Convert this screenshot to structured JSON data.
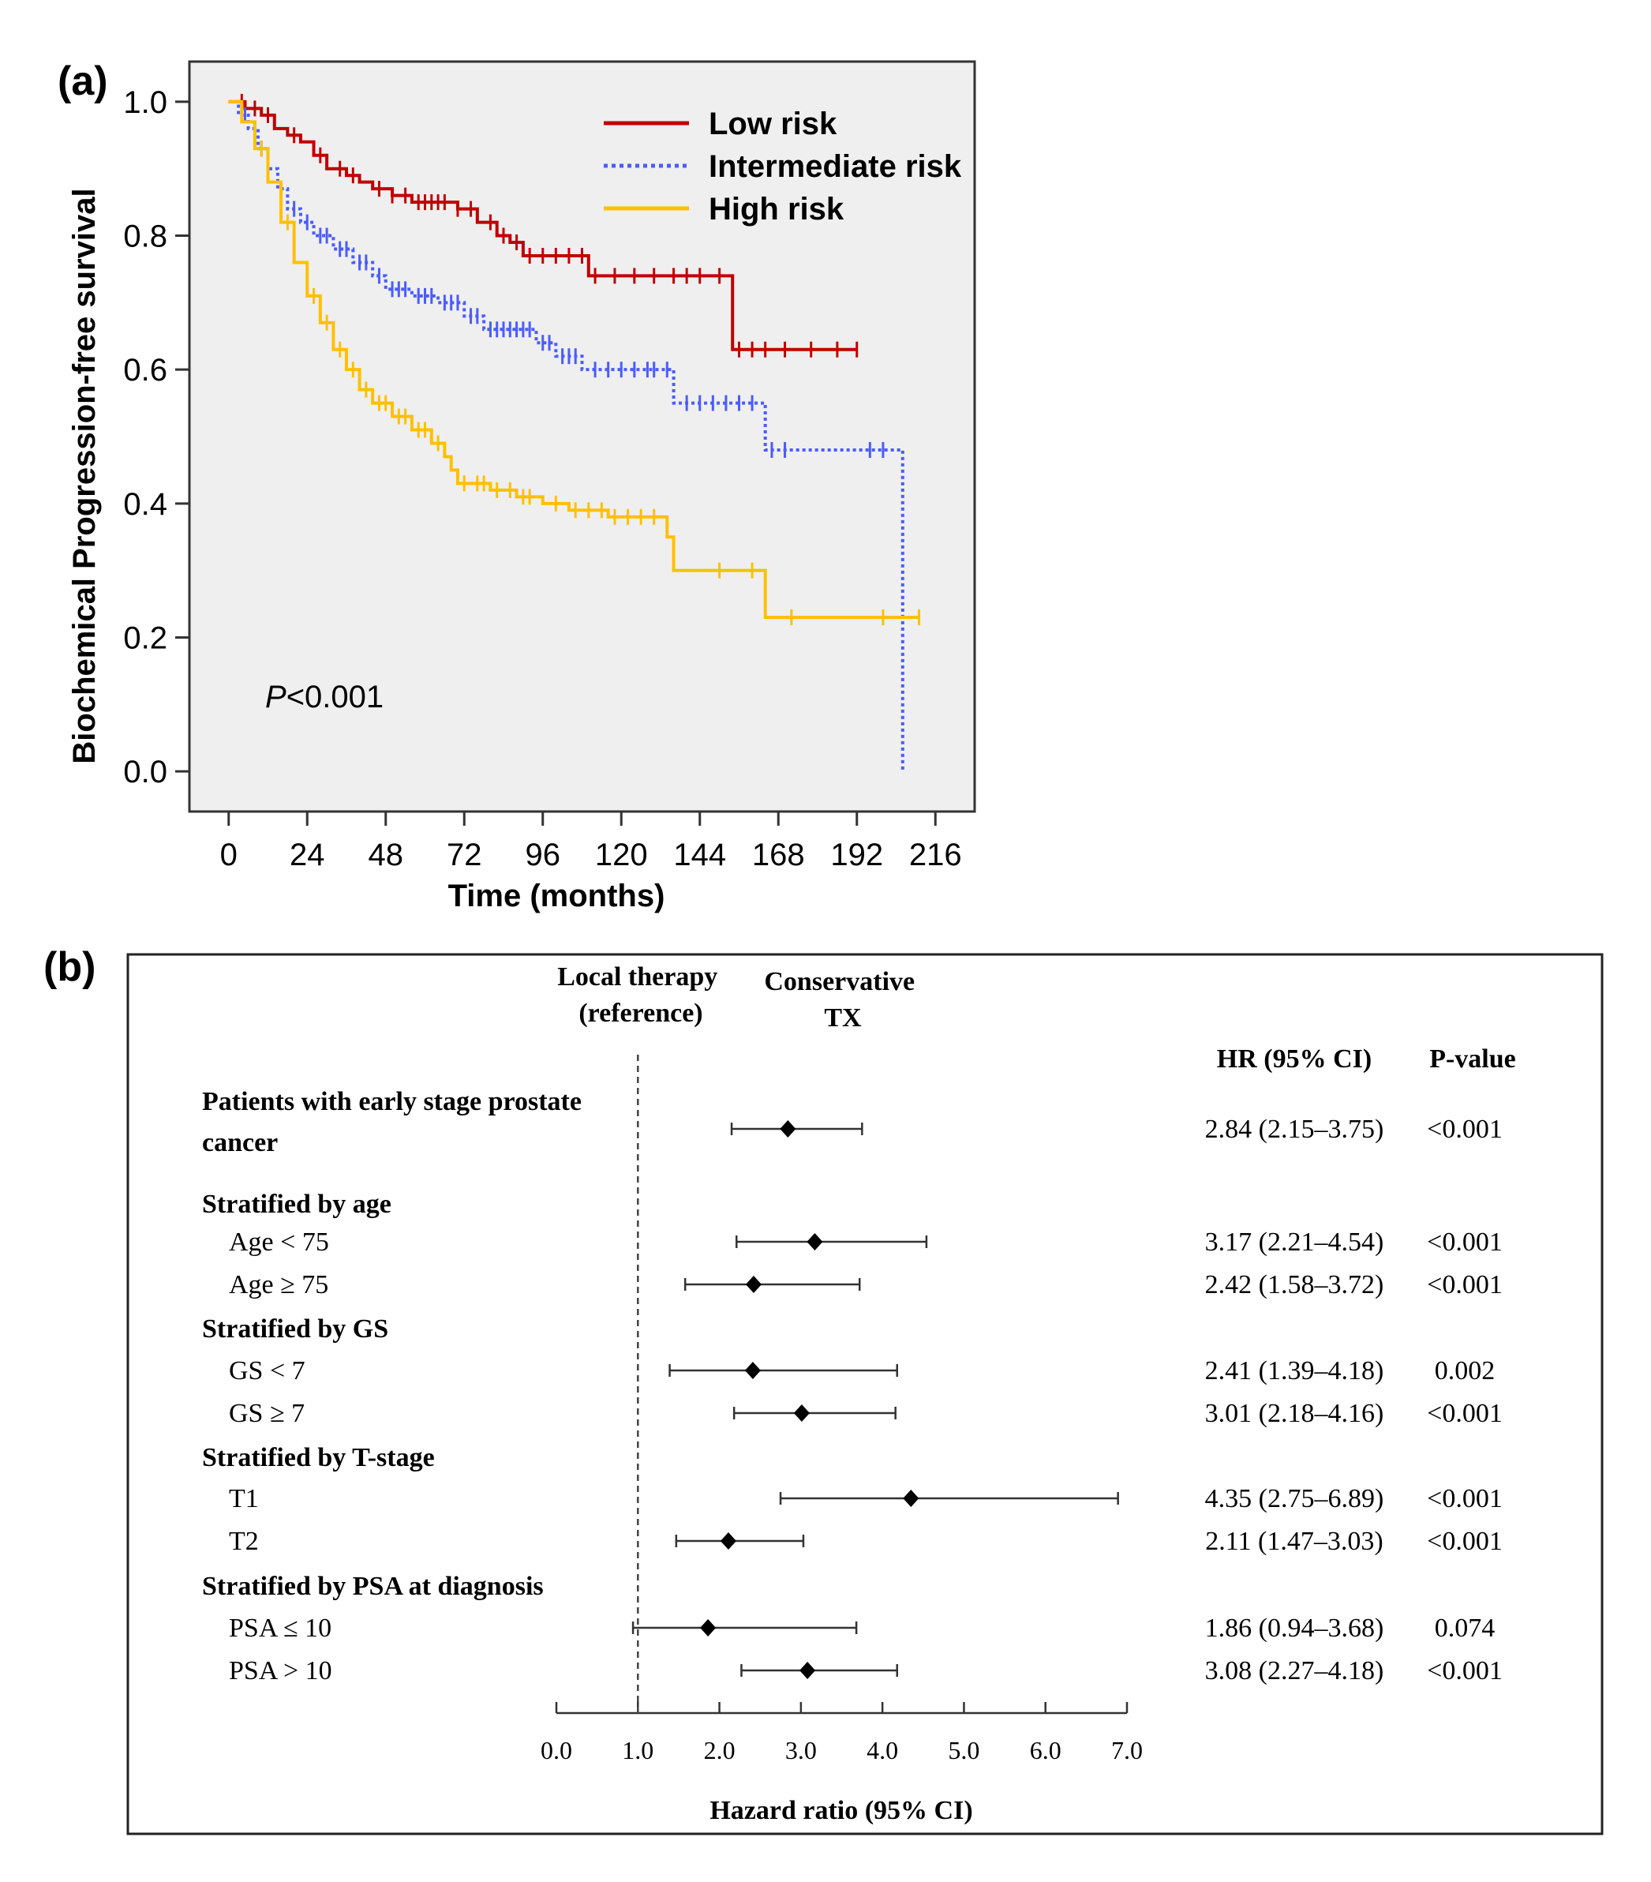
{
  "chart_data": [
    {
      "panel_label": "(a)",
      "type": "line",
      "subtype": "kaplan-meier",
      "xlabel": "Time (months)",
      "ylabel": "Biochemical Progression-free survival",
      "xlim": [
        -12,
        228
      ],
      "ylim": [
        -0.06,
        1.06
      ],
      "x_ticks": [
        0,
        24,
        48,
        72,
        96,
        120,
        144,
        168,
        192,
        216
      ],
      "y_ticks": [
        0.0,
        0.2,
        0.4,
        0.6,
        0.8,
        1.0
      ],
      "x_tick_labels": [
        "0",
        "24",
        "48",
        "72",
        "96",
        "120",
        "144",
        "168",
        "192",
        "216"
      ],
      "y_tick_labels": [
        "0.0",
        "0.2",
        "0.4",
        "0.6",
        "0.8",
        "1.0"
      ],
      "annotation": {
        "prefix": "P",
        "text": "<0.001"
      },
      "legend_position": "top-right",
      "grid": false,
      "background": "#efefef",
      "series": [
        {
          "name": "Low risk",
          "color": "#c00000",
          "dash": "solid",
          "steps": [
            [
              0,
              1.0
            ],
            [
              5,
              0.99
            ],
            [
              10,
              0.98
            ],
            [
              14,
              0.96
            ],
            [
              18,
              0.95
            ],
            [
              22,
              0.94
            ],
            [
              26,
              0.92
            ],
            [
              30,
              0.9
            ],
            [
              36,
              0.89
            ],
            [
              40,
              0.88
            ],
            [
              44,
              0.87
            ],
            [
              50,
              0.86
            ],
            [
              56,
              0.85
            ],
            [
              70,
              0.84
            ],
            [
              76,
              0.82
            ],
            [
              82,
              0.8
            ],
            [
              86,
              0.79
            ],
            [
              90,
              0.77
            ],
            [
              110,
              0.74
            ],
            [
              154,
              0.63
            ],
            [
              192,
              0.63
            ]
          ],
          "censors": [
            4,
            8,
            12,
            20,
            28,
            34,
            38,
            46,
            50,
            54,
            58,
            60,
            62,
            64,
            66,
            70,
            74,
            80,
            84,
            88,
            92,
            96,
            100,
            104,
            108,
            112,
            118,
            124,
            130,
            136,
            140,
            144,
            150,
            156,
            160,
            164,
            170,
            178,
            186,
            192
          ]
        },
        {
          "name": "Intermediate risk",
          "color": "#4a5cff",
          "dash": "dotted",
          "steps": [
            [
              0,
              1.0
            ],
            [
              3,
              0.98
            ],
            [
              6,
              0.96
            ],
            [
              9,
              0.93
            ],
            [
              12,
              0.9
            ],
            [
              15,
              0.87
            ],
            [
              18,
              0.84
            ],
            [
              22,
              0.82
            ],
            [
              26,
              0.8
            ],
            [
              32,
              0.78
            ],
            [
              38,
              0.76
            ],
            [
              44,
              0.74
            ],
            [
              48,
              0.72
            ],
            [
              56,
              0.71
            ],
            [
              64,
              0.7
            ],
            [
              72,
              0.68
            ],
            [
              78,
              0.66
            ],
            [
              94,
              0.64
            ],
            [
              100,
              0.62
            ],
            [
              108,
              0.6
            ],
            [
              136,
              0.55
            ],
            [
              164,
              0.48
            ],
            [
              206,
              0.0
            ]
          ],
          "censors": [
            5,
            10,
            16,
            20,
            24,
            28,
            30,
            34,
            36,
            40,
            42,
            46,
            50,
            52,
            54,
            58,
            60,
            62,
            66,
            68,
            70,
            74,
            76,
            80,
            82,
            84,
            86,
            88,
            90,
            92,
            96,
            98,
            102,
            104,
            106,
            112,
            116,
            120,
            124,
            128,
            130,
            134,
            140,
            144,
            148,
            152,
            156,
            160,
            166,
            170,
            196,
            200
          ]
        },
        {
          "name": "High risk",
          "color": "#ffc000",
          "dash": "solid",
          "steps": [
            [
              0,
              1.0
            ],
            [
              4,
              0.97
            ],
            [
              8,
              0.93
            ],
            [
              12,
              0.88
            ],
            [
              16,
              0.82
            ],
            [
              20,
              0.76
            ],
            [
              24,
              0.71
            ],
            [
              28,
              0.67
            ],
            [
              32,
              0.63
            ],
            [
              36,
              0.6
            ],
            [
              40,
              0.57
            ],
            [
              44,
              0.55
            ],
            [
              50,
              0.53
            ],
            [
              56,
              0.51
            ],
            [
              62,
              0.49
            ],
            [
              66,
              0.47
            ],
            [
              68,
              0.45
            ],
            [
              70,
              0.43
            ],
            [
              80,
              0.42
            ],
            [
              88,
              0.41
            ],
            [
              96,
              0.4
            ],
            [
              104,
              0.39
            ],
            [
              116,
              0.38
            ],
            [
              134,
              0.35
            ],
            [
              136,
              0.3
            ],
            [
              164,
              0.23
            ],
            [
              211,
              0.23
            ]
          ],
          "censors": [
            10,
            18,
            26,
            30,
            34,
            38,
            42,
            46,
            48,
            52,
            54,
            58,
            60,
            64,
            72,
            76,
            78,
            82,
            86,
            90,
            92,
            100,
            106,
            110,
            114,
            118,
            122,
            126,
            130,
            150,
            160,
            172,
            200,
            211
          ]
        }
      ]
    },
    {
      "panel_label": "(b)",
      "type": "forest",
      "xlabel": "Hazard ratio (95% CI)",
      "xlim": [
        0,
        7
      ],
      "x_ticks": [
        0,
        1,
        2,
        3,
        4,
        5,
        6,
        7
      ],
      "x_tick_labels": [
        "0.0",
        "1.0",
        "2.0",
        "3.0",
        "4.0",
        "5.0",
        "6.0",
        "7.0"
      ],
      "reference_line": 1.0,
      "header_left": [
        "Local therapy",
        "(reference)"
      ],
      "header_right": [
        "Conservative",
        "TX"
      ],
      "col_hr": "HR (95% CI)",
      "col_p": "P-value",
      "groups": [
        {
          "title": [
            "Patients with early stage prostate",
            "cancer"
          ],
          "rows": [
            {
              "label": "",
              "hr": 2.84,
              "lo": 2.15,
              "hi": 3.75,
              "hr_text": "2.84 (2.15–3.75)",
              "p": "<0.001"
            }
          ]
        },
        {
          "title": [
            "Stratified by age"
          ],
          "rows": [
            {
              "label": "Age < 75",
              "hr": 3.17,
              "lo": 2.21,
              "hi": 4.54,
              "hr_text": "3.17 (2.21–4.54)",
              "p": "<0.001"
            },
            {
              "label": "Age ≥ 75",
              "hr": 2.42,
              "lo": 1.58,
              "hi": 3.72,
              "hr_text": "2.42 (1.58–3.72)",
              "p": "<0.001"
            }
          ]
        },
        {
          "title": [
            "Stratified by GS"
          ],
          "rows": [
            {
              "label": "GS < 7",
              "hr": 2.41,
              "lo": 1.39,
              "hi": 4.18,
              "hr_text": "2.41 (1.39–4.18)",
              "p": "0.002"
            },
            {
              "label": "GS ≥ 7",
              "hr": 3.01,
              "lo": 2.18,
              "hi": 4.16,
              "hr_text": "3.01 (2.18–4.16)",
              "p": "<0.001"
            }
          ]
        },
        {
          "title": [
            "Stratified by T-stage"
          ],
          "rows": [
            {
              "label": "T1",
              "hr": 4.35,
              "lo": 2.75,
              "hi": 6.89,
              "hr_text": "4.35 (2.75–6.89)",
              "p": "<0.001"
            },
            {
              "label": "T2",
              "hr": 2.11,
              "lo": 1.47,
              "hi": 3.03,
              "hr_text": "2.11 (1.47–3.03)",
              "p": "<0.001"
            }
          ]
        },
        {
          "title": [
            "Stratified by PSA at diagnosis"
          ],
          "rows": [
            {
              "label": "PSA ≤ 10",
              "hr": 1.86,
              "lo": 0.94,
              "hi": 3.68,
              "hr_text": "1.86 (0.94–3.68)",
              "p": "0.074"
            },
            {
              "label": "PSA > 10",
              "hr": 3.08,
              "lo": 2.27,
              "hi": 4.18,
              "hr_text": "3.08 (2.27–4.18)",
              "p": "<0.001"
            }
          ]
        }
      ]
    }
  ]
}
